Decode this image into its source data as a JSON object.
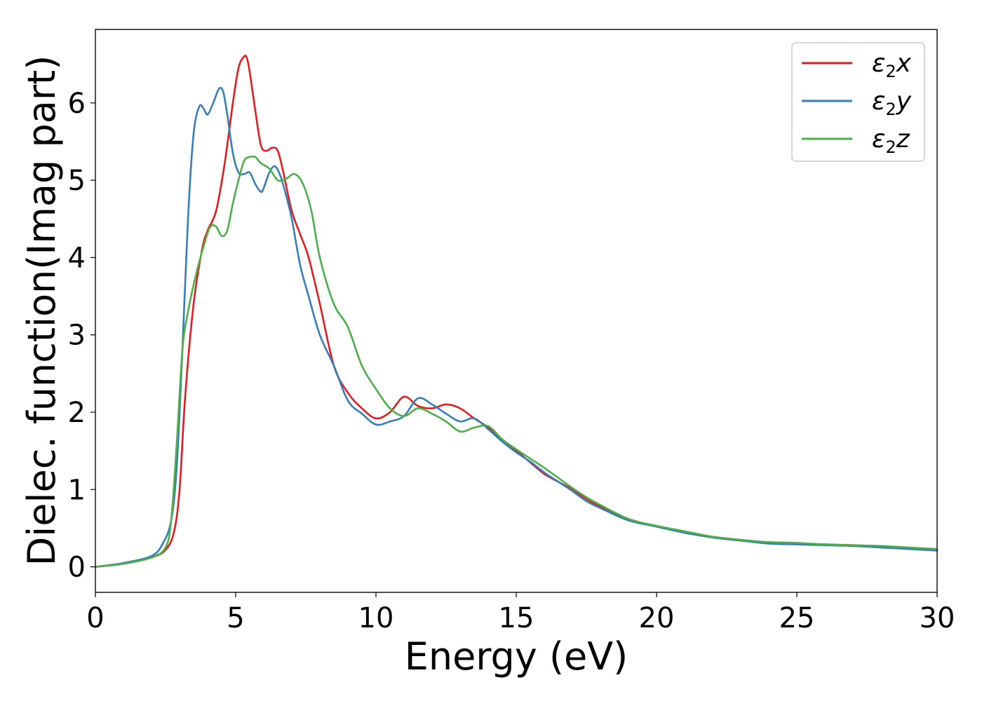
{
  "chart_data": {
    "type": "line",
    "title": "",
    "xlabel": "Energy (eV)",
    "ylabel": "Dielec. function(Imag part)",
    "xlim": [
      0,
      30
    ],
    "ylim": [
      -0.33,
      6.95
    ],
    "x_ticks": [
      "0",
      "5",
      "10",
      "15",
      "20",
      "25",
      "30"
    ],
    "y_ticks": [
      "0",
      "1",
      "2",
      "3",
      "4",
      "5",
      "6"
    ],
    "grid": false,
    "legend_position": "top-right",
    "series": [
      {
        "name": "ε2x",
        "legend_base": "ε",
        "legend_sub": "2",
        "legend_suffix": "x",
        "color": "#e41a1c",
        "x": [
          0,
          1,
          2,
          2.5,
          2.8,
          3.0,
          3.2,
          3.5,
          3.8,
          4.0,
          4.3,
          4.6,
          4.9,
          5.1,
          5.3,
          5.4,
          5.5,
          5.7,
          5.9,
          6.1,
          6.3,
          6.5,
          6.7,
          7.0,
          7.3,
          7.6,
          8.0,
          8.5,
          9.0,
          9.5,
          10.0,
          10.5,
          11.0,
          11.5,
          12.0,
          12.5,
          13.0,
          13.5,
          14.0,
          14.5,
          15.0,
          15.5,
          16.0,
          16.5,
          17.0,
          17.5,
          18.0,
          19.0,
          20.0,
          21.0,
          22.0,
          23.0,
          24.0,
          25.0,
          26.0,
          27.0,
          28.0,
          29.0,
          30.0
        ],
        "y": [
          0,
          0.04,
          0.12,
          0.22,
          0.45,
          1.0,
          2.2,
          3.4,
          4.1,
          4.35,
          4.6,
          5.2,
          6.0,
          6.45,
          6.6,
          6.58,
          6.4,
          5.9,
          5.45,
          5.38,
          5.42,
          5.38,
          5.1,
          4.6,
          4.3,
          4.0,
          3.4,
          2.6,
          2.25,
          2.05,
          1.92,
          2.0,
          2.2,
          2.08,
          2.05,
          2.1,
          2.05,
          1.92,
          1.8,
          1.62,
          1.5,
          1.35,
          1.2,
          1.1,
          1.0,
          0.88,
          0.78,
          0.62,
          0.52,
          0.45,
          0.38,
          0.34,
          0.31,
          0.3,
          0.29,
          0.28,
          0.26,
          0.24,
          0.22
        ]
      },
      {
        "name": "ε2y",
        "legend_base": "ε",
        "legend_sub": "2",
        "legend_suffix": "y",
        "color": "#377eb8",
        "x": [
          0,
          1,
          2,
          2.4,
          2.7,
          2.9,
          3.1,
          3.3,
          3.5,
          3.7,
          3.85,
          4.0,
          4.2,
          4.4,
          4.55,
          4.7,
          4.9,
          5.1,
          5.3,
          5.5,
          5.7,
          5.9,
          6.0,
          6.2,
          6.4,
          6.6,
          6.8,
          7.0,
          7.3,
          7.6,
          8.0,
          8.5,
          9.0,
          9.5,
          10.0,
          10.5,
          11.0,
          11.5,
          12.0,
          12.5,
          13.0,
          13.5,
          14.0,
          14.5,
          15.0,
          15.5,
          16.0,
          16.5,
          17.0,
          17.5,
          18.0,
          19.0,
          20.0,
          21.0,
          22.0,
          23.0,
          24.0,
          25.0,
          26.0,
          27.0,
          28.0,
          29.0,
          30.0
        ],
        "y": [
          0,
          0.05,
          0.14,
          0.3,
          0.6,
          1.3,
          2.8,
          4.5,
          5.6,
          5.95,
          5.93,
          5.85,
          6.0,
          6.18,
          6.15,
          5.85,
          5.35,
          5.1,
          5.08,
          5.1,
          4.95,
          4.85,
          4.9,
          5.1,
          5.18,
          5.05,
          4.8,
          4.5,
          3.9,
          3.5,
          3.0,
          2.6,
          2.15,
          1.98,
          1.84,
          1.88,
          1.95,
          2.18,
          2.1,
          1.98,
          1.88,
          1.92,
          1.78,
          1.62,
          1.48,
          1.36,
          1.22,
          1.1,
          0.98,
          0.85,
          0.76,
          0.6,
          0.52,
          0.44,
          0.38,
          0.34,
          0.3,
          0.29,
          0.28,
          0.27,
          0.25,
          0.23,
          0.21
        ]
      },
      {
        "name": "ε2z",
        "legend_base": "ε",
        "legend_sub": "2",
        "legend_suffix": "z",
        "color": "#4daf4a",
        "x": [
          0,
          1,
          2,
          2.5,
          2.7,
          2.9,
          3.1,
          3.3,
          3.6,
          3.9,
          4.1,
          4.3,
          4.5,
          4.7,
          4.9,
          5.1,
          5.3,
          5.5,
          5.7,
          5.9,
          6.2,
          6.5,
          6.8,
          7.1,
          7.4,
          7.7,
          8.0,
          8.5,
          9.0,
          9.5,
          10.0,
          10.5,
          11.0,
          11.5,
          12.0,
          12.5,
          13.0,
          13.5,
          14.0,
          14.5,
          15.0,
          15.5,
          16.0,
          16.5,
          17.0,
          17.5,
          18.0,
          19.0,
          20.0,
          21.0,
          22.0,
          23.0,
          24.0,
          25.0,
          26.0,
          27.0,
          28.0,
          29.0,
          30.0
        ],
        "y": [
          0,
          0.04,
          0.12,
          0.25,
          0.6,
          1.6,
          2.8,
          3.3,
          3.8,
          4.2,
          4.4,
          4.4,
          4.28,
          4.35,
          4.7,
          5.0,
          5.25,
          5.3,
          5.3,
          5.22,
          5.15,
          5.0,
          5.02,
          5.08,
          4.95,
          4.6,
          4.0,
          3.4,
          3.1,
          2.6,
          2.3,
          2.05,
          1.95,
          2.05,
          1.98,
          1.88,
          1.75,
          1.8,
          1.82,
          1.65,
          1.52,
          1.4,
          1.28,
          1.15,
          1.02,
          0.9,
          0.8,
          0.62,
          0.53,
          0.46,
          0.39,
          0.35,
          0.32,
          0.31,
          0.29,
          0.28,
          0.27,
          0.25,
          0.23
        ]
      }
    ]
  }
}
